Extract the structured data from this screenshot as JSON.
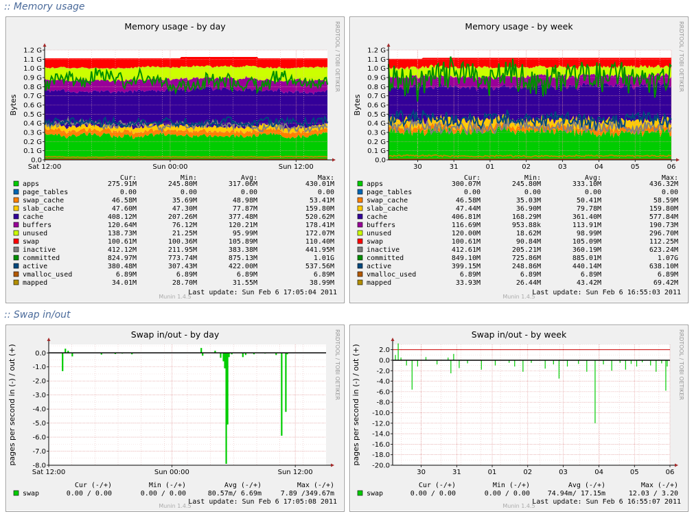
{
  "sections": {
    "memory": ":: Memory usage",
    "swap": ":: Swap in/out"
  },
  "watermark": "RRDTOOL / TOBI OETIKER",
  "version": "Munin 1.4.5",
  "legend_headers": {
    "cur": "Cur:",
    "min": "Min:",
    "avg": "Avg:",
    "max": "Max:"
  },
  "swap_legend_headers": {
    "cur": "Cur (-/+)",
    "min": "Min (-/+)",
    "avg": "Avg (-/+)",
    "max": "Max (-/+)"
  },
  "colors": {
    "apps": "#00cc00",
    "page_tables": "#0066b3",
    "swap_cache": "#ff8000",
    "slab_cache": "#ffcc00",
    "cache": "#330099",
    "buffers": "#990099",
    "unused": "#ccff00",
    "swap": "#ff0000",
    "inactive": "#808080",
    "committed": "#008f00",
    "active": "#00487d",
    "vmalloc_used": "#b35a00",
    "mapped": "#b38f00",
    "swap_line": "#00cc00"
  },
  "chart_data": [
    {
      "id": "mem_day",
      "type": "area",
      "title": "Memory usage - by day",
      "ylabel": "Bytes",
      "ylim": [
        0,
        1.2
      ],
      "y_unit": "G",
      "yticks": [
        "0.0",
        "0.1 G",
        "0.2 G",
        "0.3 G",
        "0.4 G",
        "0.5 G",
        "0.6 G",
        "0.7 G",
        "0.8 G",
        "0.9 G",
        "1.0 G",
        "1.1 G",
        "1.2 G"
      ],
      "xticks": [
        {
          "label": "Sat 12:00",
          "pos": 0.0
        },
        {
          "label": "Sun 00:00",
          "pos": 0.444
        },
        {
          "label": "Sun 12:00",
          "pos": 0.889
        }
      ],
      "stack_series": [
        {
          "name": "apps",
          "base": 0.27
        },
        {
          "name": "page_tables",
          "base": 0.0
        },
        {
          "name": "swap_cache",
          "base": 0.05
        },
        {
          "name": "slab_cache",
          "base": 0.05
        },
        {
          "name": "cache",
          "base": 0.37
        },
        {
          "name": "buffers",
          "base": 0.12
        },
        {
          "name": "unused",
          "base": 0.13
        },
        {
          "name": "swap",
          "base": 0.1
        }
      ],
      "line_series": [
        {
          "name": "inactive",
          "base": 0.38
        },
        {
          "name": "committed",
          "base": 0.86
        },
        {
          "name": "active",
          "base": 0.42
        },
        {
          "name": "vmalloc_used",
          "base": 0.0066
        },
        {
          "name": "mapped",
          "base": 0.034
        }
      ],
      "legend": [
        {
          "name": "apps",
          "cur": "275.91M",
          "min": "245.80M",
          "avg": "317.06M",
          "max": "430.01M"
        },
        {
          "name": "page_tables",
          "cur": "0.00",
          "min": "0.00",
          "avg": "0.00",
          "max": "0.00"
        },
        {
          "name": "swap_cache",
          "cur": "46.58M",
          "min": "35.69M",
          "avg": "48.98M",
          "max": "53.41M"
        },
        {
          "name": "slab_cache",
          "cur": "47.60M",
          "min": "47.30M",
          "avg": "77.87M",
          "max": "159.80M"
        },
        {
          "name": "cache",
          "cur": "408.12M",
          "min": "207.26M",
          "avg": "377.48M",
          "max": "520.62M"
        },
        {
          "name": "buffers",
          "cur": "120.64M",
          "min": "76.12M",
          "avg": "120.21M",
          "max": "178.41M"
        },
        {
          "name": "unused",
          "cur": "138.73M",
          "min": "21.25M",
          "avg": "95.99M",
          "max": "172.07M"
        },
        {
          "name": "swap",
          "cur": "100.61M",
          "min": "100.36M",
          "avg": "105.89M",
          "max": "110.40M"
        },
        {
          "name": "inactive",
          "cur": "412.12M",
          "min": "211.95M",
          "avg": "383.38M",
          "max": "441.95M"
        },
        {
          "name": "committed",
          "cur": "824.97M",
          "min": "773.74M",
          "avg": "875.13M",
          "max": "1.01G"
        },
        {
          "name": "active",
          "cur": "380.48M",
          "min": "307.43M",
          "avg": "422.00M",
          "max": "537.56M"
        },
        {
          "name": "vmalloc_used",
          "cur": "6.89M",
          "min": "6.89M",
          "avg": "6.89M",
          "max": "6.89M"
        },
        {
          "name": "mapped",
          "cur": "34.01M",
          "min": "28.70M",
          "avg": "31.55M",
          "max": "38.99M"
        }
      ],
      "last_update": "Last update:  Sun Feb  6 17:05:04 2011"
    },
    {
      "id": "mem_week",
      "type": "area",
      "title": "Memory usage - by week",
      "ylabel": "Bytes",
      "ylim": [
        0,
        1.2
      ],
      "y_unit": "G",
      "yticks": [
        "0.0",
        "0.1 G",
        "0.2 G",
        "0.3 G",
        "0.4 G",
        "0.5 G",
        "0.6 G",
        "0.7 G",
        "0.8 G",
        "0.9 G",
        "1.0 G",
        "1.1 G",
        "1.2 G"
      ],
      "xticks": [
        {
          "label": "30",
          "pos": 0.103
        },
        {
          "label": "31",
          "pos": 0.231
        },
        {
          "label": "01",
          "pos": 0.359
        },
        {
          "label": "02",
          "pos": 0.487
        },
        {
          "label": "03",
          "pos": 0.615
        },
        {
          "label": "04",
          "pos": 0.744
        },
        {
          "label": "05",
          "pos": 0.872
        },
        {
          "label": "06",
          "pos": 1.0
        }
      ],
      "stack_series": [
        {
          "name": "apps",
          "base": 0.3
        },
        {
          "name": "page_tables",
          "base": 0.0
        },
        {
          "name": "swap_cache",
          "base": 0.05
        },
        {
          "name": "slab_cache",
          "base": 0.08
        },
        {
          "name": "cache",
          "base": 0.36
        },
        {
          "name": "buffers",
          "base": 0.11
        },
        {
          "name": "unused",
          "base": 0.1
        },
        {
          "name": "swap",
          "base": 0.1
        }
      ],
      "line_series": [
        {
          "name": "inactive",
          "base": 0.36
        },
        {
          "name": "committed",
          "base": 0.885
        },
        {
          "name": "active",
          "base": 0.44
        },
        {
          "name": "vmalloc_used",
          "base": 0.0066
        },
        {
          "name": "mapped",
          "base": 0.043
        }
      ],
      "legend": [
        {
          "name": "apps",
          "cur": "300.07M",
          "min": "245.80M",
          "avg": "333.10M",
          "max": "436.32M"
        },
        {
          "name": "page_tables",
          "cur": "0.00",
          "min": "0.00",
          "avg": "0.00",
          "max": "0.00"
        },
        {
          "name": "swap_cache",
          "cur": "46.58M",
          "min": "35.03M",
          "avg": "50.41M",
          "max": "58.59M"
        },
        {
          "name": "slab_cache",
          "cur": "47.44M",
          "min": "36.90M",
          "avg": "79.78M",
          "max": "159.80M"
        },
        {
          "name": "cache",
          "cur": "406.81M",
          "min": "168.29M",
          "avg": "361.40M",
          "max": "577.84M"
        },
        {
          "name": "buffers",
          "cur": "116.69M",
          "min": "953.88k",
          "avg": "113.91M",
          "max": "190.73M"
        },
        {
          "name": "unused",
          "cur": "120.00M",
          "min": "18.62M",
          "avg": "98.99M",
          "max": "296.70M"
        },
        {
          "name": "swap",
          "cur": "100.61M",
          "min": "90.84M",
          "avg": "105.09M",
          "max": "112.25M"
        },
        {
          "name": "inactive",
          "cur": "412.61M",
          "min": "205.21M",
          "avg": "360.19M",
          "max": "623.24M"
        },
        {
          "name": "committed",
          "cur": "849.10M",
          "min": "725.86M",
          "avg": "885.01M",
          "max": "1.07G"
        },
        {
          "name": "active",
          "cur": "399.15M",
          "min": "248.86M",
          "avg": "440.14M",
          "max": "638.10M"
        },
        {
          "name": "vmalloc_used",
          "cur": "6.89M",
          "min": "6.89M",
          "avg": "6.89M",
          "max": "6.89M"
        },
        {
          "name": "mapped",
          "cur": "33.93M",
          "min": "26.44M",
          "avg": "43.42M",
          "max": "69.42M"
        }
      ],
      "last_update": "Last update:  Sun Feb  6 16:55:03 2011"
    },
    {
      "id": "swap_day",
      "type": "bar",
      "title": "Swap in/out - by day",
      "ylabel": "pages per second in (-) / out (+)",
      "ylim": [
        -8.0,
        0.6
      ],
      "yticks": [
        0.0,
        -1.0,
        -2.0,
        -3.0,
        -4.0,
        -5.0,
        -6.0,
        -7.0,
        -8.0
      ],
      "ytick_labels": [
        "0.0",
        "-1.0",
        "-2.0",
        "-3.0",
        "-4.0",
        "-5.0",
        "-6.0",
        "-7.0",
        "-8.0"
      ],
      "xticks": [
        {
          "label": "Sat 12:00",
          "pos": 0.0
        },
        {
          "label": "Sun 00:00",
          "pos": 0.444
        },
        {
          "label": "Sun 12:00",
          "pos": 0.889
        }
      ],
      "points": [
        [
          0.05,
          -1.3
        ],
        [
          0.06,
          0.3
        ],
        [
          0.07,
          0.15
        ],
        [
          0.085,
          -0.25
        ],
        [
          0.19,
          -0.12
        ],
        [
          0.24,
          -0.08
        ],
        [
          0.265,
          -0.05
        ],
        [
          0.3,
          -0.1
        ],
        [
          0.55,
          0.35
        ],
        [
          0.555,
          -0.2
        ],
        [
          0.6,
          0.15
        ],
        [
          0.62,
          -0.35
        ],
        [
          0.63,
          -0.6
        ],
        [
          0.635,
          -1.1
        ],
        [
          0.64,
          -7.9
        ],
        [
          0.645,
          -5.1
        ],
        [
          0.65,
          -0.3
        ],
        [
          0.66,
          -0.1
        ],
        [
          0.7,
          -0.3
        ],
        [
          0.71,
          -0.15
        ],
        [
          0.74,
          -0.1
        ],
        [
          0.78,
          -0.05
        ],
        [
          0.82,
          -0.15
        ],
        [
          0.84,
          -5.9
        ],
        [
          0.855,
          -4.2
        ],
        [
          0.86,
          -0.1
        ]
      ],
      "legend": [
        {
          "name": "swap",
          "cur": "0.00 /  0.00",
          "min": "0.00 /  0.00",
          "avg": "80.57m/  6.69m",
          "max": "7.89 /349.67m"
        }
      ],
      "last_update": "Last update:  Sun Feb  6 17:05:08 2011"
    },
    {
      "id": "swap_week",
      "type": "bar",
      "title": "Swap in/out - by week",
      "ylabel": "pages per second in (-) / out (+)",
      "ylim": [
        -20.0,
        3.0
      ],
      "yticks": [
        2.0,
        0.0,
        -2.0,
        -4.0,
        -6.0,
        -8.0,
        -10.0,
        -12.0,
        -14.0,
        -16.0,
        -18.0,
        -20.0
      ],
      "ytick_labels": [
        "2.0",
        "0.0",
        "-2.0",
        "-4.0",
        "-6.0",
        "-8.0",
        "-10.0",
        "-12.0",
        "-14.0",
        "-16.0",
        "-18.0",
        "-20.0"
      ],
      "hline": 2.0,
      "xticks": [
        {
          "label": "30",
          "pos": 0.103
        },
        {
          "label": "31",
          "pos": 0.231
        },
        {
          "label": "01",
          "pos": 0.359
        },
        {
          "label": "02",
          "pos": 0.487
        },
        {
          "label": "03",
          "pos": 0.615
        },
        {
          "label": "04",
          "pos": 0.744
        },
        {
          "label": "05",
          "pos": 0.872
        },
        {
          "label": "06",
          "pos": 1.0
        }
      ],
      "points": [
        [
          0.01,
          1.0
        ],
        [
          0.02,
          3.2
        ],
        [
          0.03,
          0.5
        ],
        [
          0.05,
          -1.0
        ],
        [
          0.07,
          -5.6
        ],
        [
          0.09,
          -1.2
        ],
        [
          0.12,
          0.6
        ],
        [
          0.16,
          -0.8
        ],
        [
          0.2,
          0.5
        ],
        [
          0.21,
          -2.5
        ],
        [
          0.22,
          1.2
        ],
        [
          0.24,
          -1.5
        ],
        [
          0.27,
          -0.6
        ],
        [
          0.32,
          -1.8
        ],
        [
          0.37,
          -1.0
        ],
        [
          0.42,
          -0.5
        ],
        [
          0.44,
          -1.2
        ],
        [
          0.47,
          -2.2
        ],
        [
          0.5,
          -0.5
        ],
        [
          0.55,
          -1.6
        ],
        [
          0.58,
          -0.8
        ],
        [
          0.6,
          -3.5
        ],
        [
          0.63,
          -1.2
        ],
        [
          0.67,
          -0.7
        ],
        [
          0.7,
          -2.2
        ],
        [
          0.73,
          -12.0
        ],
        [
          0.76,
          -0.8
        ],
        [
          0.79,
          -2.0
        ],
        [
          0.82,
          -0.5
        ],
        [
          0.84,
          -1.8
        ],
        [
          0.86,
          -0.7
        ],
        [
          0.88,
          -1.2
        ],
        [
          0.9,
          -0.4
        ],
        [
          0.93,
          -1.0
        ],
        [
          0.95,
          -2.2
        ],
        [
          0.97,
          -0.6
        ],
        [
          0.985,
          -5.8
        ],
        [
          0.99,
          -1.2
        ]
      ],
      "legend": [
        {
          "name": "swap",
          "cur": "0.00 /  0.00",
          "min": "0.00 /  0.00",
          "avg": "74.94m/ 17.15m",
          "max": "12.03 /  3.20"
        }
      ],
      "last_update": "Last update:  Sun Feb  6 16:55:07 2011"
    }
  ]
}
